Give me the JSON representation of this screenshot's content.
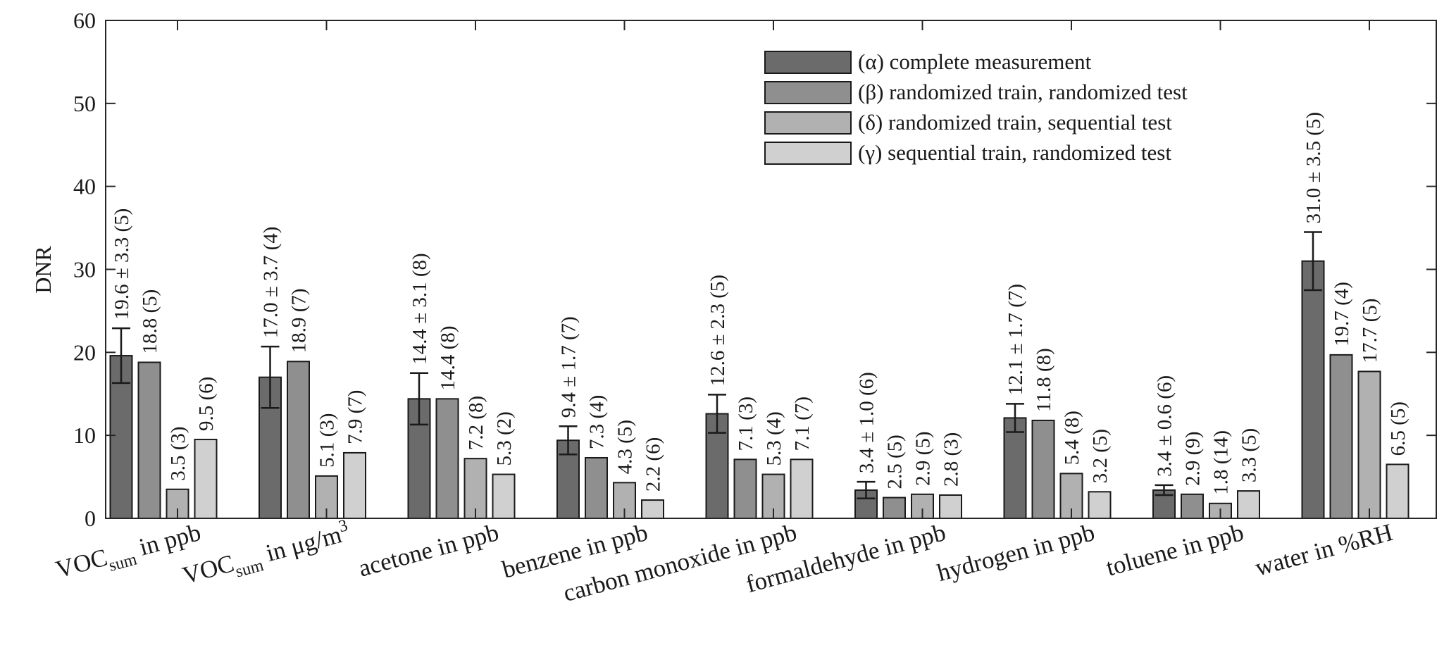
{
  "chart_data": {
    "type": "bar",
    "title": "",
    "xlabel": "",
    "ylabel": "DNR",
    "ylim": [
      0,
      60
    ],
    "yticks": [
      0,
      10,
      20,
      30,
      40,
      50,
      60
    ],
    "legend_position": "top-right",
    "categories": [
      {
        "base": "VOC",
        "sub": "sum",
        "suffix": " in ppb"
      },
      {
        "base": "VOC",
        "sub": "sum",
        "suffix": " in μg/m",
        "sup": "3"
      },
      {
        "base": "acetone in ppb"
      },
      {
        "base": "benzene in ppb"
      },
      {
        "base": "carbon monoxide in ppb"
      },
      {
        "base": "formaldehyde in ppb"
      },
      {
        "base": "hydrogen in ppb"
      },
      {
        "base": "toluene in ppb"
      },
      {
        "base": "water in %RH"
      }
    ],
    "series": [
      {
        "name": "(α) complete measurement",
        "color": "#6b6b6b",
        "values": [
          19.6,
          17.0,
          14.4,
          9.4,
          12.6,
          3.4,
          12.1,
          3.4,
          31.0
        ],
        "errors": [
          3.3,
          3.7,
          3.1,
          1.7,
          2.3,
          1.0,
          1.7,
          0.6,
          3.5
        ],
        "labels": [
          "19.6 ± 3.3 (5)",
          "17.0 ± 3.7 (4)",
          "14.4 ± 3.1 (8)",
          "9.4 ± 1.7 (7)",
          "12.6 ± 2.3 (5)",
          "3.4 ± 1.0 (6)",
          "12.1 ± 1.7 (7)",
          "3.4 ± 0.6 (6)",
          "31.0 ± 3.5 (5)"
        ]
      },
      {
        "name": "(β) randomized train, randomized test",
        "color": "#8f8f8f",
        "values": [
          18.8,
          18.9,
          14.4,
          7.3,
          7.1,
          2.5,
          11.8,
          2.9,
          19.7
        ],
        "labels": [
          "18.8 (5)",
          "18.9 (7)",
          "14.4 (8)",
          "7.3 (4)",
          "7.1 (3)",
          "2.5 (5)",
          "11.8 (8)",
          "2.9 (9)",
          "19.7 (4)"
        ]
      },
      {
        "name": "(δ) randomized train, sequential test",
        "color": "#b1b1b1",
        "values": [
          3.5,
          5.1,
          7.2,
          4.3,
          5.3,
          2.9,
          5.4,
          1.8,
          17.7
        ],
        "labels": [
          "3.5 (3)",
          "5.1 (3)",
          "7.2 (8)",
          "4.3 (5)",
          "5.3 (4)",
          "2.9 (5)",
          "5.4 (8)",
          "1.8 (14)",
          "17.7 (5)"
        ]
      },
      {
        "name": "(γ) sequential train, randomized test",
        "color": "#d0d0d0",
        "values": [
          9.5,
          7.9,
          5.3,
          2.2,
          7.1,
          2.8,
          3.2,
          3.3,
          6.5
        ],
        "labels": [
          "9.5 (6)",
          "7.9 (7)",
          "5.3 (2)",
          "2.2 (6)",
          "7.1 (7)",
          "2.8 (3)",
          "3.2 (5)",
          "3.3 (5)",
          "6.5 (5)"
        ]
      }
    ]
  }
}
